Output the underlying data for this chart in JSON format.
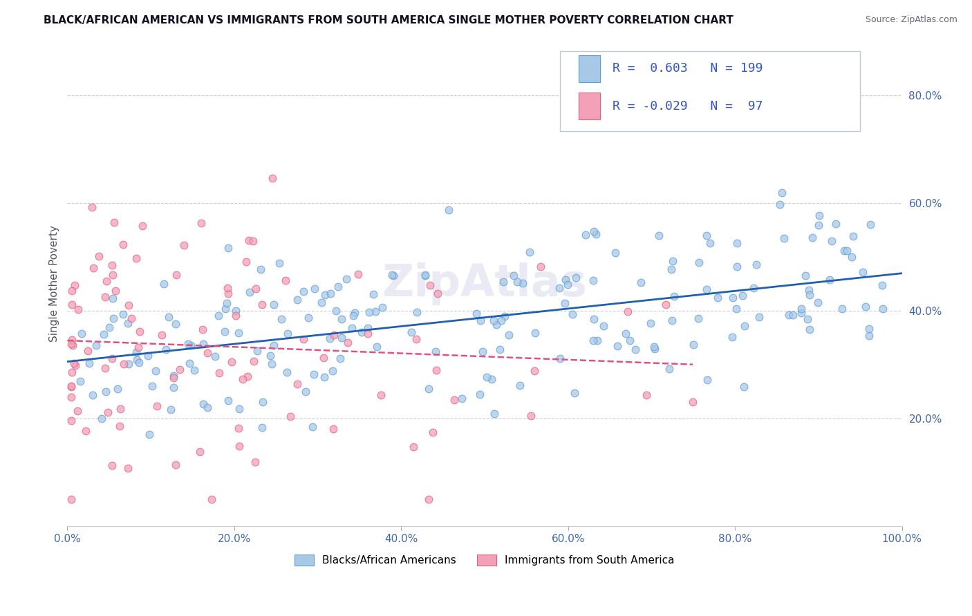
{
  "title": "BLACK/AFRICAN AMERICAN VS IMMIGRANTS FROM SOUTH AMERICA SINGLE MOTHER POVERTY CORRELATION CHART",
  "source": "Source: ZipAtlas.com",
  "ylabel": "Single Mother Poverty",
  "r_blue": 0.603,
  "n_blue": 199,
  "r_pink": -0.029,
  "n_pink": 97,
  "xlim": [
    0.0,
    1.0
  ],
  "ylim": [
    0.0,
    0.9
  ],
  "xtick_labels": [
    "0.0%",
    "20.0%",
    "40.0%",
    "60.0%",
    "80.0%",
    "100.0%"
  ],
  "xtick_vals": [
    0.0,
    0.2,
    0.4,
    0.6,
    0.8,
    1.0
  ],
  "ytick_labels": [
    "20.0%",
    "40.0%",
    "60.0%",
    "80.0%"
  ],
  "ytick_vals": [
    0.2,
    0.4,
    0.6,
    0.8
  ],
  "legend_blue": "Blacks/African Americans",
  "legend_pink": "Immigrants from South America",
  "blue_color": "#a8c8e8",
  "pink_color": "#f4a0b8",
  "blue_edge_color": "#5a9fd4",
  "pink_edge_color": "#e06080",
  "blue_line_color": "#2060b0",
  "pink_line_color": "#e05080",
  "watermark": "ZipAtlas",
  "legend_box_color": "#f0f4ff",
  "legend_border_color": "#c0c8d8"
}
